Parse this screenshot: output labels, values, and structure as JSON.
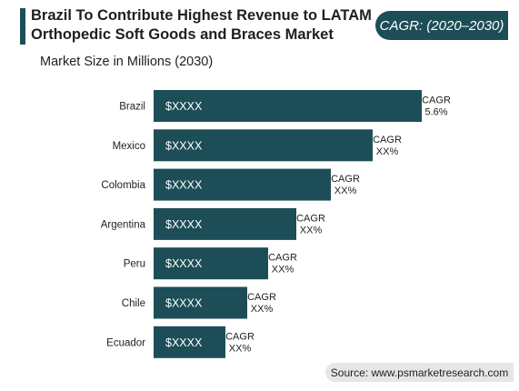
{
  "title": "Brazil To Contribute Highest Revenue to LATAM Orthopedic Soft Goods and Braces Market",
  "cagr_badge": "CAGR: (2020–2030)",
  "source": "Source: www.psmarketresearch.com",
  "colors": {
    "bar": "#1d4e57",
    "accent": "#1d4e57",
    "source_bg": "#e6e6e6"
  },
  "chart_data": {
    "type": "bar",
    "orientation": "horizontal",
    "title": "Market Size in Millions (2030)",
    "categories": [
      "Brazil",
      "Mexico",
      "Colombia",
      "Argentina",
      "Peru",
      "Chile",
      "Ecuador"
    ],
    "values": [
      295,
      241,
      195,
      157,
      126,
      103,
      79
    ],
    "value_labels": [
      "$XXXX",
      "$XXXX",
      "$XXXX",
      "$XXXX",
      "$XXXX",
      "$XXXX",
      "$XXXX"
    ],
    "cagr_labels": [
      "5.6%",
      "XX%",
      "XX%",
      "XX%",
      "XX%",
      "XX%",
      "XX%"
    ],
    "cagr_prefix": "CAGR",
    "xlim": [
      0,
      295
    ],
    "grid": false,
    "legend": "none"
  }
}
